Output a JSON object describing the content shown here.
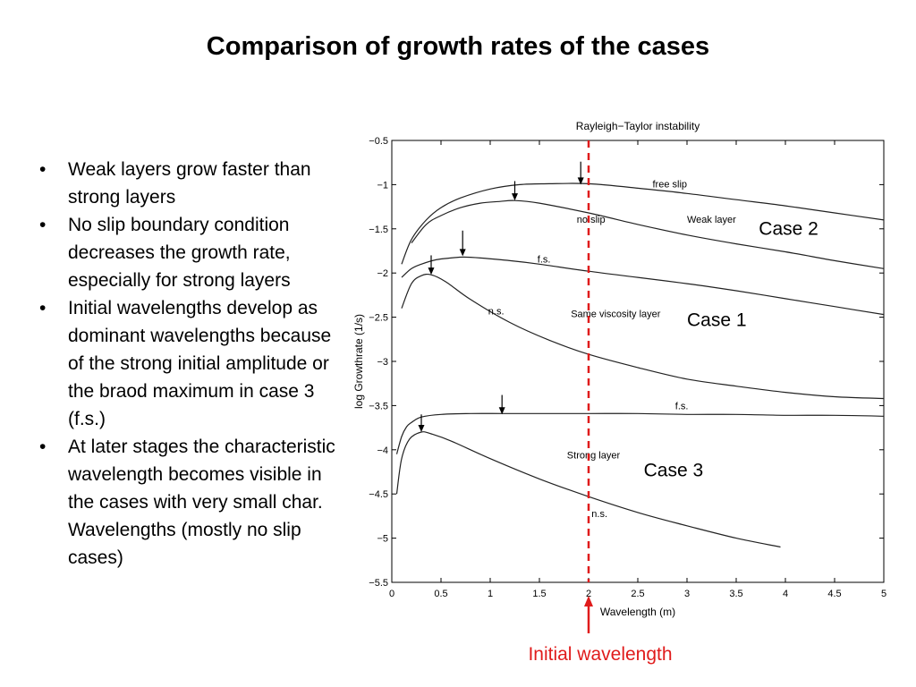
{
  "slide": {
    "title": "Comparison of growth rates of the cases",
    "bullets": [
      "Weak layers grow faster than strong layers",
      "No slip boundary condition decreases the growth rate, especially for strong layers",
      "Initial wavelengths develop as dominant wavelengths because of the strong initial amplitude or the braod maximum in case 3 (f.s.)",
      "At later stages the characteristic wavelength becomes visible in the cases with very small char. Wavelengths (mostly no slip cases)"
    ]
  },
  "chart_data": {
    "type": "line",
    "title": "Rayleigh−Taylor instability",
    "xlabel": "Wavelength (m)",
    "ylabel": "log Growthrate (1/s)",
    "xlim": [
      0,
      5
    ],
    "ylim": [
      -5.5,
      -0.5
    ],
    "xticks": [
      "0",
      "0.5",
      "1",
      "1.5",
      "2",
      "2.5",
      "3",
      "3.5",
      "4",
      "4.5",
      "5"
    ],
    "yticks": [
      "−0.5",
      "−1",
      "−1.5",
      "−2",
      "−2.5",
      "−3",
      "−3.5",
      "−4",
      "−4.5",
      "−5",
      "−5.5"
    ],
    "grid": false,
    "series": [
      {
        "name": "free slip",
        "x": [
          0.1,
          0.2,
          0.35,
          0.5,
          0.7,
          1.0,
          1.3,
          1.6,
          2.0,
          2.5,
          3.0,
          3.5,
          4.0,
          4.5,
          5.0
        ],
        "y": [
          -1.9,
          -1.62,
          -1.4,
          -1.26,
          -1.15,
          -1.05,
          -1.0,
          -0.99,
          -0.99,
          -1.04,
          -1.1,
          -1.17,
          -1.24,
          -1.32,
          -1.4
        ]
      },
      {
        "name": "no slip",
        "x": [
          0.2,
          0.35,
          0.5,
          0.7,
          0.9,
          1.1,
          1.25,
          1.5,
          2.0,
          2.5,
          3.0,
          3.5,
          4.0,
          4.5,
          5.0
        ],
        "y": [
          -1.66,
          -1.45,
          -1.35,
          -1.26,
          -1.21,
          -1.19,
          -1.18,
          -1.21,
          -1.32,
          -1.45,
          -1.57,
          -1.67,
          -1.76,
          -1.86,
          -1.95
        ]
      },
      {
        "name": "f.s.",
        "x": [
          0.1,
          0.2,
          0.3,
          0.45,
          0.6,
          0.73,
          0.9,
          1.2,
          1.5,
          2.0,
          2.5,
          3.0,
          3.5,
          4.0,
          4.5,
          5.0
        ],
        "y": [
          -2.05,
          -1.95,
          -1.9,
          -1.85,
          -1.83,
          -1.82,
          -1.83,
          -1.86,
          -1.9,
          -1.98,
          -2.05,
          -2.12,
          -2.2,
          -2.29,
          -2.38,
          -2.47
        ]
      },
      {
        "name": "n.s.",
        "x": [
          0.1,
          0.2,
          0.3,
          0.4,
          0.55,
          0.8,
          1.2,
          1.6,
          2.0,
          2.5,
          3.0,
          3.5,
          4.0,
          4.5,
          5.0
        ],
        "y": [
          -2.4,
          -2.12,
          -2.03,
          -2.02,
          -2.1,
          -2.3,
          -2.56,
          -2.76,
          -2.92,
          -3.07,
          -3.2,
          -3.28,
          -3.35,
          -3.4,
          -3.42
        ]
      },
      {
        "name": "f.s.",
        "x": [
          0.05,
          0.1,
          0.15,
          0.2,
          0.3,
          0.5,
          0.8,
          1.14,
          1.5,
          2.0,
          2.5,
          3.0,
          3.5,
          4.0,
          4.5,
          5.0
        ],
        "y": [
          -4.05,
          -3.85,
          -3.74,
          -3.69,
          -3.63,
          -3.6,
          -3.59,
          -3.59,
          -3.59,
          -3.59,
          -3.59,
          -3.6,
          -3.6,
          -3.61,
          -3.61,
          -3.62
        ]
      },
      {
        "name": "n.s.",
        "x": [
          0.05,
          0.1,
          0.18,
          0.3,
          0.4,
          0.6,
          1.0,
          1.5,
          2.0,
          2.5,
          3.0,
          3.5,
          3.95
        ],
        "y": [
          -4.5,
          -4.1,
          -3.88,
          -3.8,
          -3.82,
          -3.9,
          -4.1,
          -4.33,
          -4.53,
          -4.71,
          -4.86,
          -5.0,
          -5.1
        ]
      }
    ],
    "annotations": [
      {
        "text": "free slip",
        "x": 2.65,
        "y": -1.03
      },
      {
        "text": "no slip",
        "x": 1.88,
        "y": -1.43
      },
      {
        "text": "Weak layer",
        "x": 3.0,
        "y": -1.43
      },
      {
        "text": "f.s.",
        "x": 1.48,
        "y": -1.88
      },
      {
        "text": "n.s.",
        "x": 0.98,
        "y": -2.47
      },
      {
        "text": "Same viscosity layer",
        "x": 1.82,
        "y": -2.5
      },
      {
        "text": "f.s.",
        "x": 2.88,
        "y": -3.54
      },
      {
        "text": "Strong layer",
        "x": 1.78,
        "y": -4.1
      },
      {
        "text": "n.s.",
        "x": 2.03,
        "y": -4.76
      }
    ],
    "arrows": [
      {
        "x": 1.92,
        "y_top": -0.74,
        "y_tip": -1.0
      },
      {
        "x": 1.25,
        "y_top": -0.96,
        "y_tip": -1.18
      },
      {
        "x": 0.72,
        "y_top": -1.52,
        "y_tip": -1.81
      },
      {
        "x": 0.4,
        "y_top": -1.8,
        "y_tip": -2.02
      },
      {
        "x": 1.12,
        "y_top": -3.38,
        "y_tip": -3.6
      },
      {
        "x": 0.3,
        "y_top": -3.6,
        "y_tip": -3.8
      }
    ],
    "case_labels": [
      {
        "text": "Case 2",
        "x": 3.73,
        "y": -1.57
      },
      {
        "text": "Case 1",
        "x": 3.0,
        "y": -2.6
      },
      {
        "text": "Case 3",
        "x": 2.56,
        "y": -4.3
      }
    ],
    "initial_wavelength": {
      "x": 2.0,
      "label": "Initial wavelength",
      "color": "#e01b1b"
    }
  }
}
